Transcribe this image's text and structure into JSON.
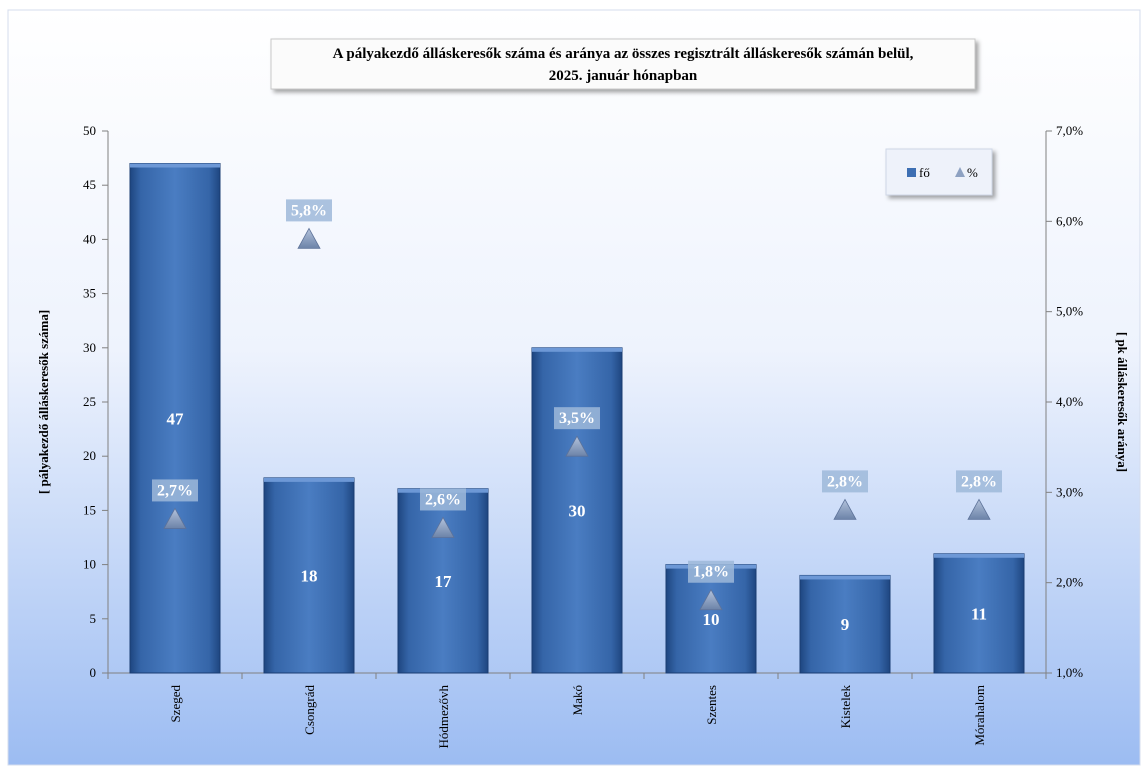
{
  "chart_data": {
    "type": "bar",
    "title_line1": "A pályakezdő álláskeresők száma és aránya az összes regisztrált álláskeresők számán belül,",
    "title_line2": "2025. január hónapban",
    "categories": [
      "Szeged",
      "Csongrád",
      "Hódmezővh",
      "Makó",
      "Szentes",
      "Kistelek",
      "Mórahalom"
    ],
    "series": [
      {
        "name": "fő",
        "axis": "left",
        "type": "bar",
        "values": [
          47,
          18,
          17,
          30,
          10,
          9,
          11
        ]
      },
      {
        "name": "%",
        "axis": "right",
        "type": "marker-triangle",
        "values": [
          2.7,
          5.8,
          2.6,
          3.5,
          1.8,
          2.8,
          2.8
        ],
        "labels": [
          "2,7%",
          "5,8%",
          "2,6%",
          "3,5%",
          "1,8%",
          "2,8%",
          "2,8%"
        ]
      }
    ],
    "ylabel": "[ pályakezdő álláskeresők száma]",
    "y2label": "[ pk álláskeresők aránya]",
    "ylim": [
      0,
      50
    ],
    "yticks": [
      0,
      5,
      10,
      15,
      20,
      25,
      30,
      35,
      40,
      45,
      50
    ],
    "y2lim": [
      1.0,
      7.0
    ],
    "y2ticks": [
      "1,0%",
      "2,0%",
      "3,0%",
      "4,0%",
      "5,0%",
      "6,0%",
      "7,0%"
    ],
    "legend_placement": "top-right",
    "colors": {
      "bar": "#3d6fb3",
      "bar_dark": "#1e4680",
      "bar_light": "#5f8fd0",
      "marker": "#8ea2c2",
      "label_bg": "#9db8d9",
      "bg_top": "#ffffff",
      "bg_bottom": "#9cbcf2"
    }
  }
}
